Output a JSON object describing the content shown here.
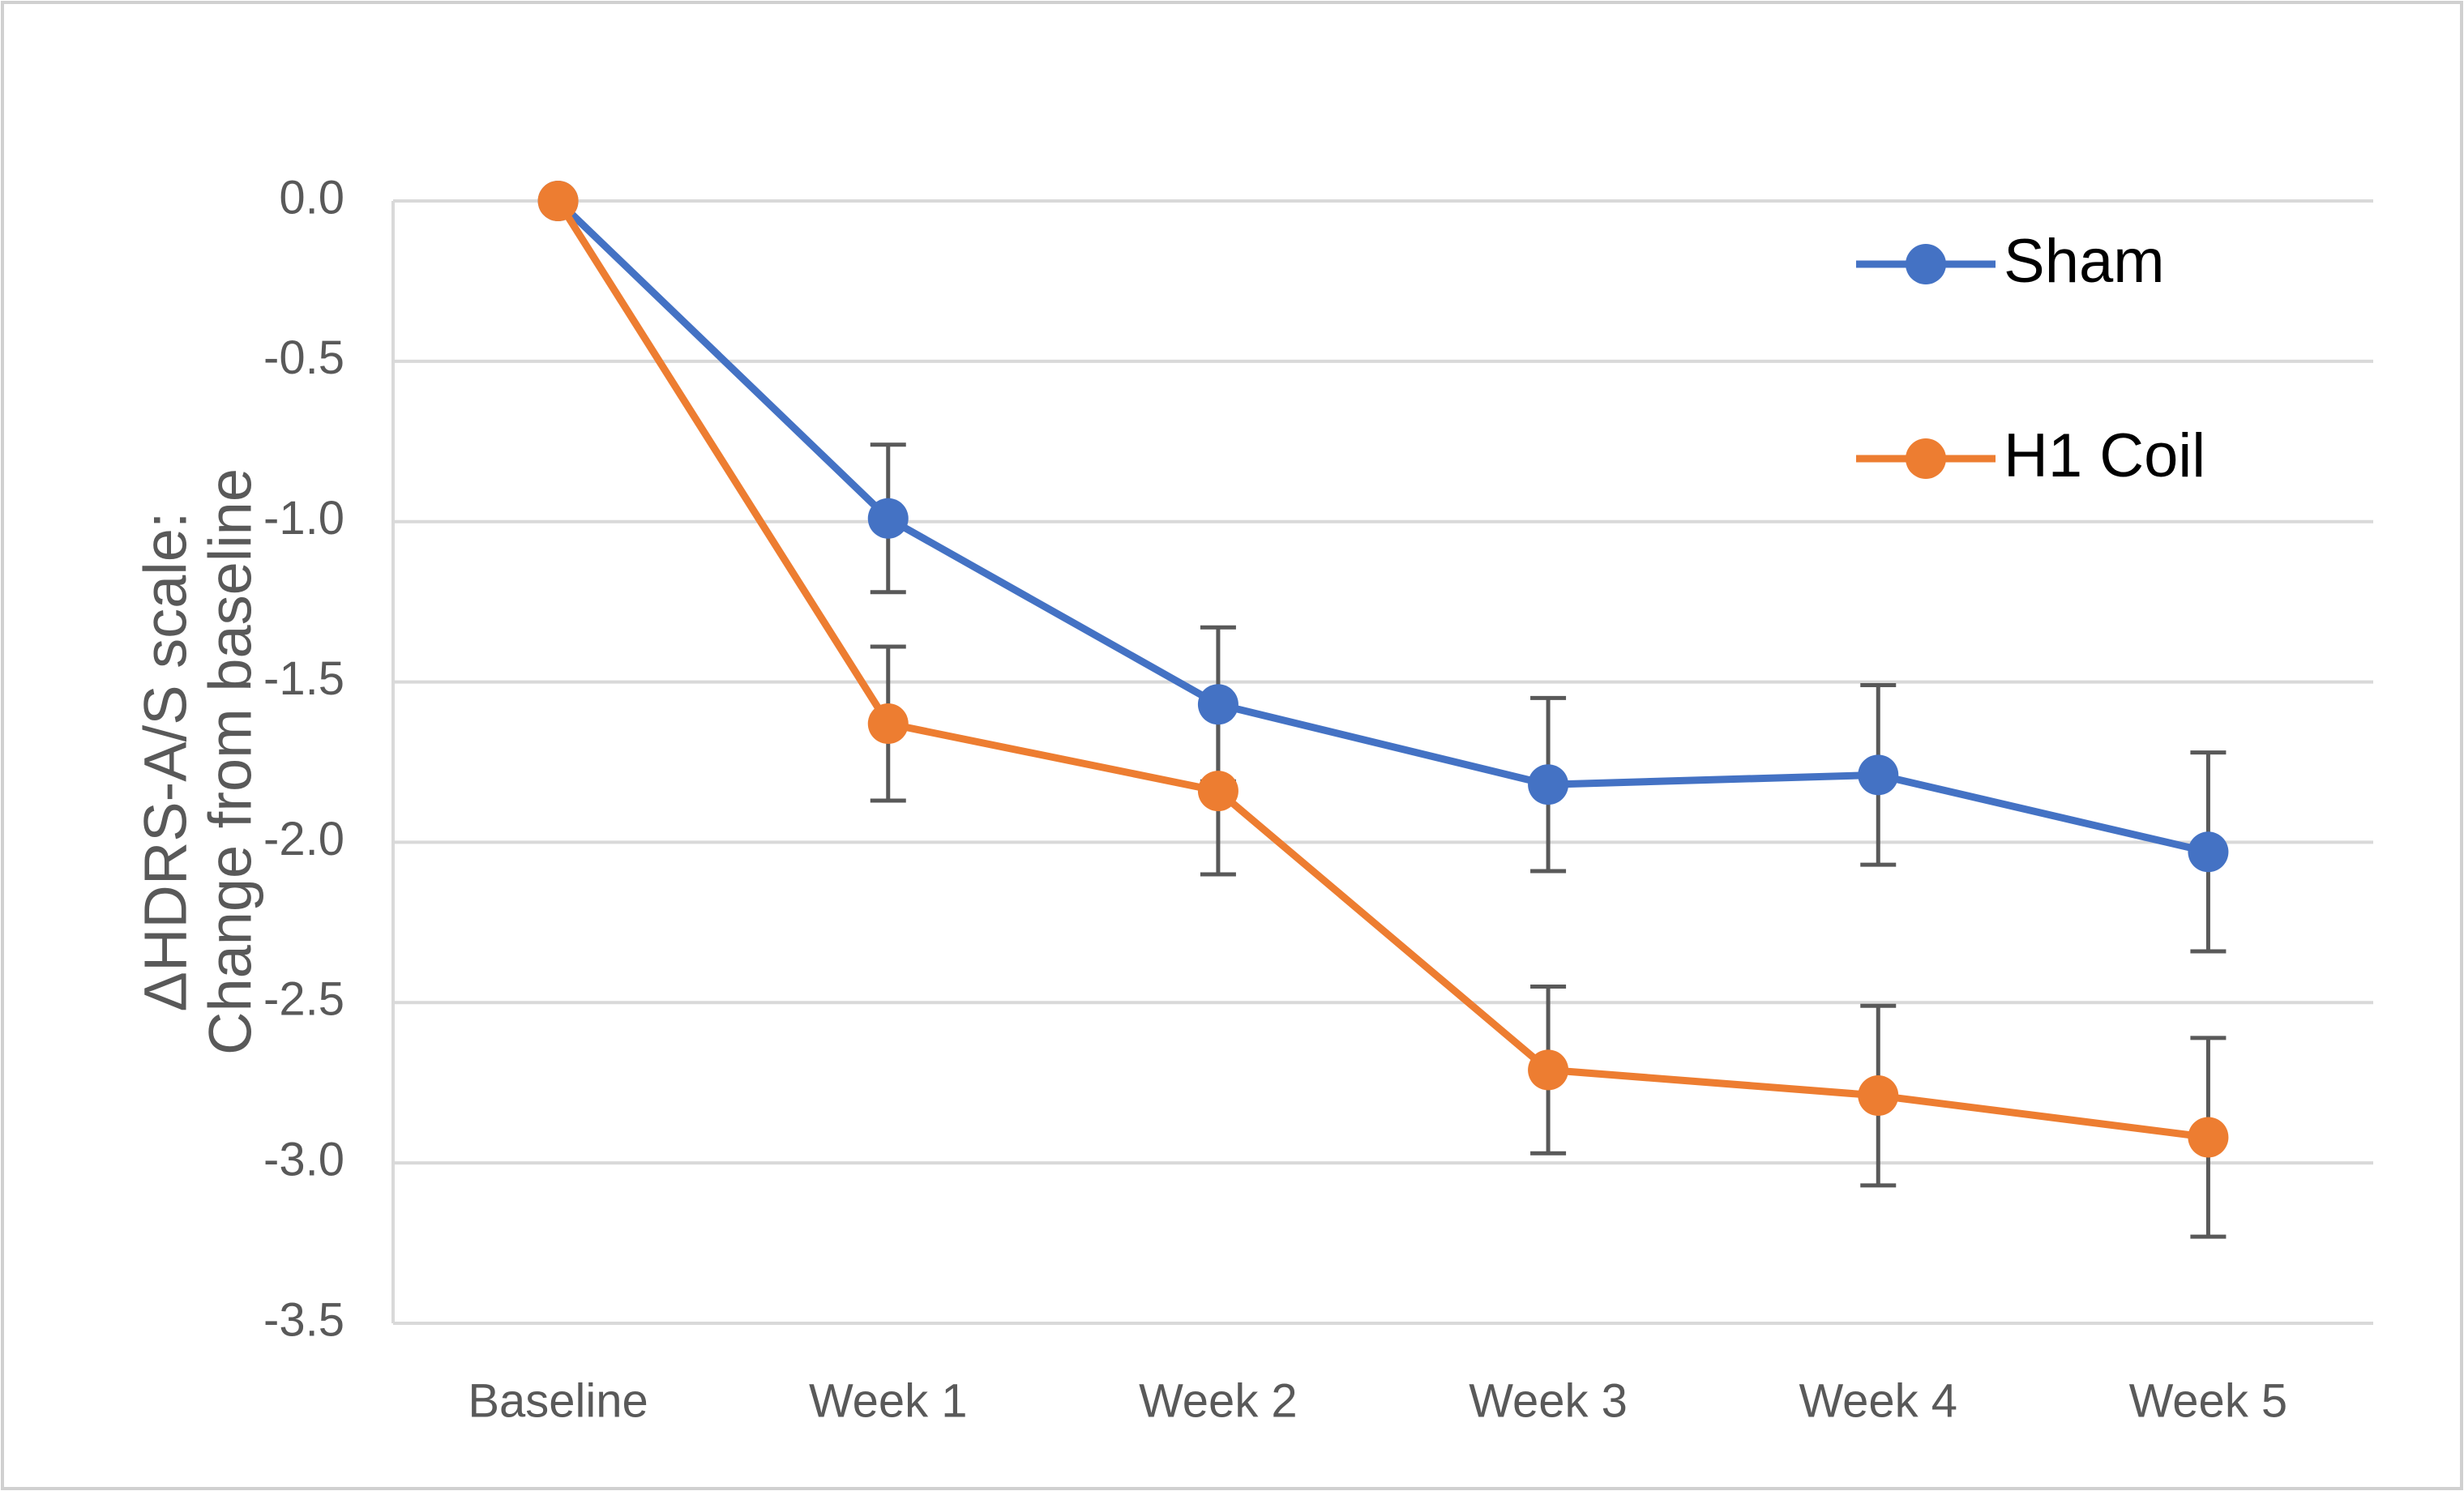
{
  "chart_data": {
    "type": "line",
    "y_axis_label": [
      "ΔHDRS-A/S scale:",
      "Change from baseline"
    ],
    "categories": [
      "Baseline",
      "Week 1",
      "Week 2",
      "Week 3",
      "Week 4",
      "Week 5"
    ],
    "series": [
      {
        "name": "Sham",
        "color": "#4472c4",
        "values": [
          0,
          -0.99,
          -1.57,
          -1.82,
          -1.79,
          -2.03
        ],
        "errors": [
          0,
          0.23,
          0.24,
          0.27,
          0.28,
          0.31
        ]
      },
      {
        "name": "H1 Coil",
        "color": "#ed7d31",
        "values": [
          0,
          -1.63,
          -1.84,
          -2.71,
          -2.79,
          -2.92
        ],
        "errors": [
          0,
          0.24,
          0.26,
          0.26,
          0.28,
          0.31
        ]
      }
    ],
    "ylim": [
      -3.5,
      0
    ],
    "yticks": [
      {
        "value": 0,
        "label": "0.0"
      },
      -0.5,
      {
        "value": -1,
        "label": "-1.0"
      },
      -1.5,
      {
        "value": -2,
        "label": "-2.0"
      },
      -2.5,
      {
        "value": -3,
        "label": "-3.0"
      },
      -3.5
    ],
    "grid": true,
    "legend": "upper-right"
  }
}
